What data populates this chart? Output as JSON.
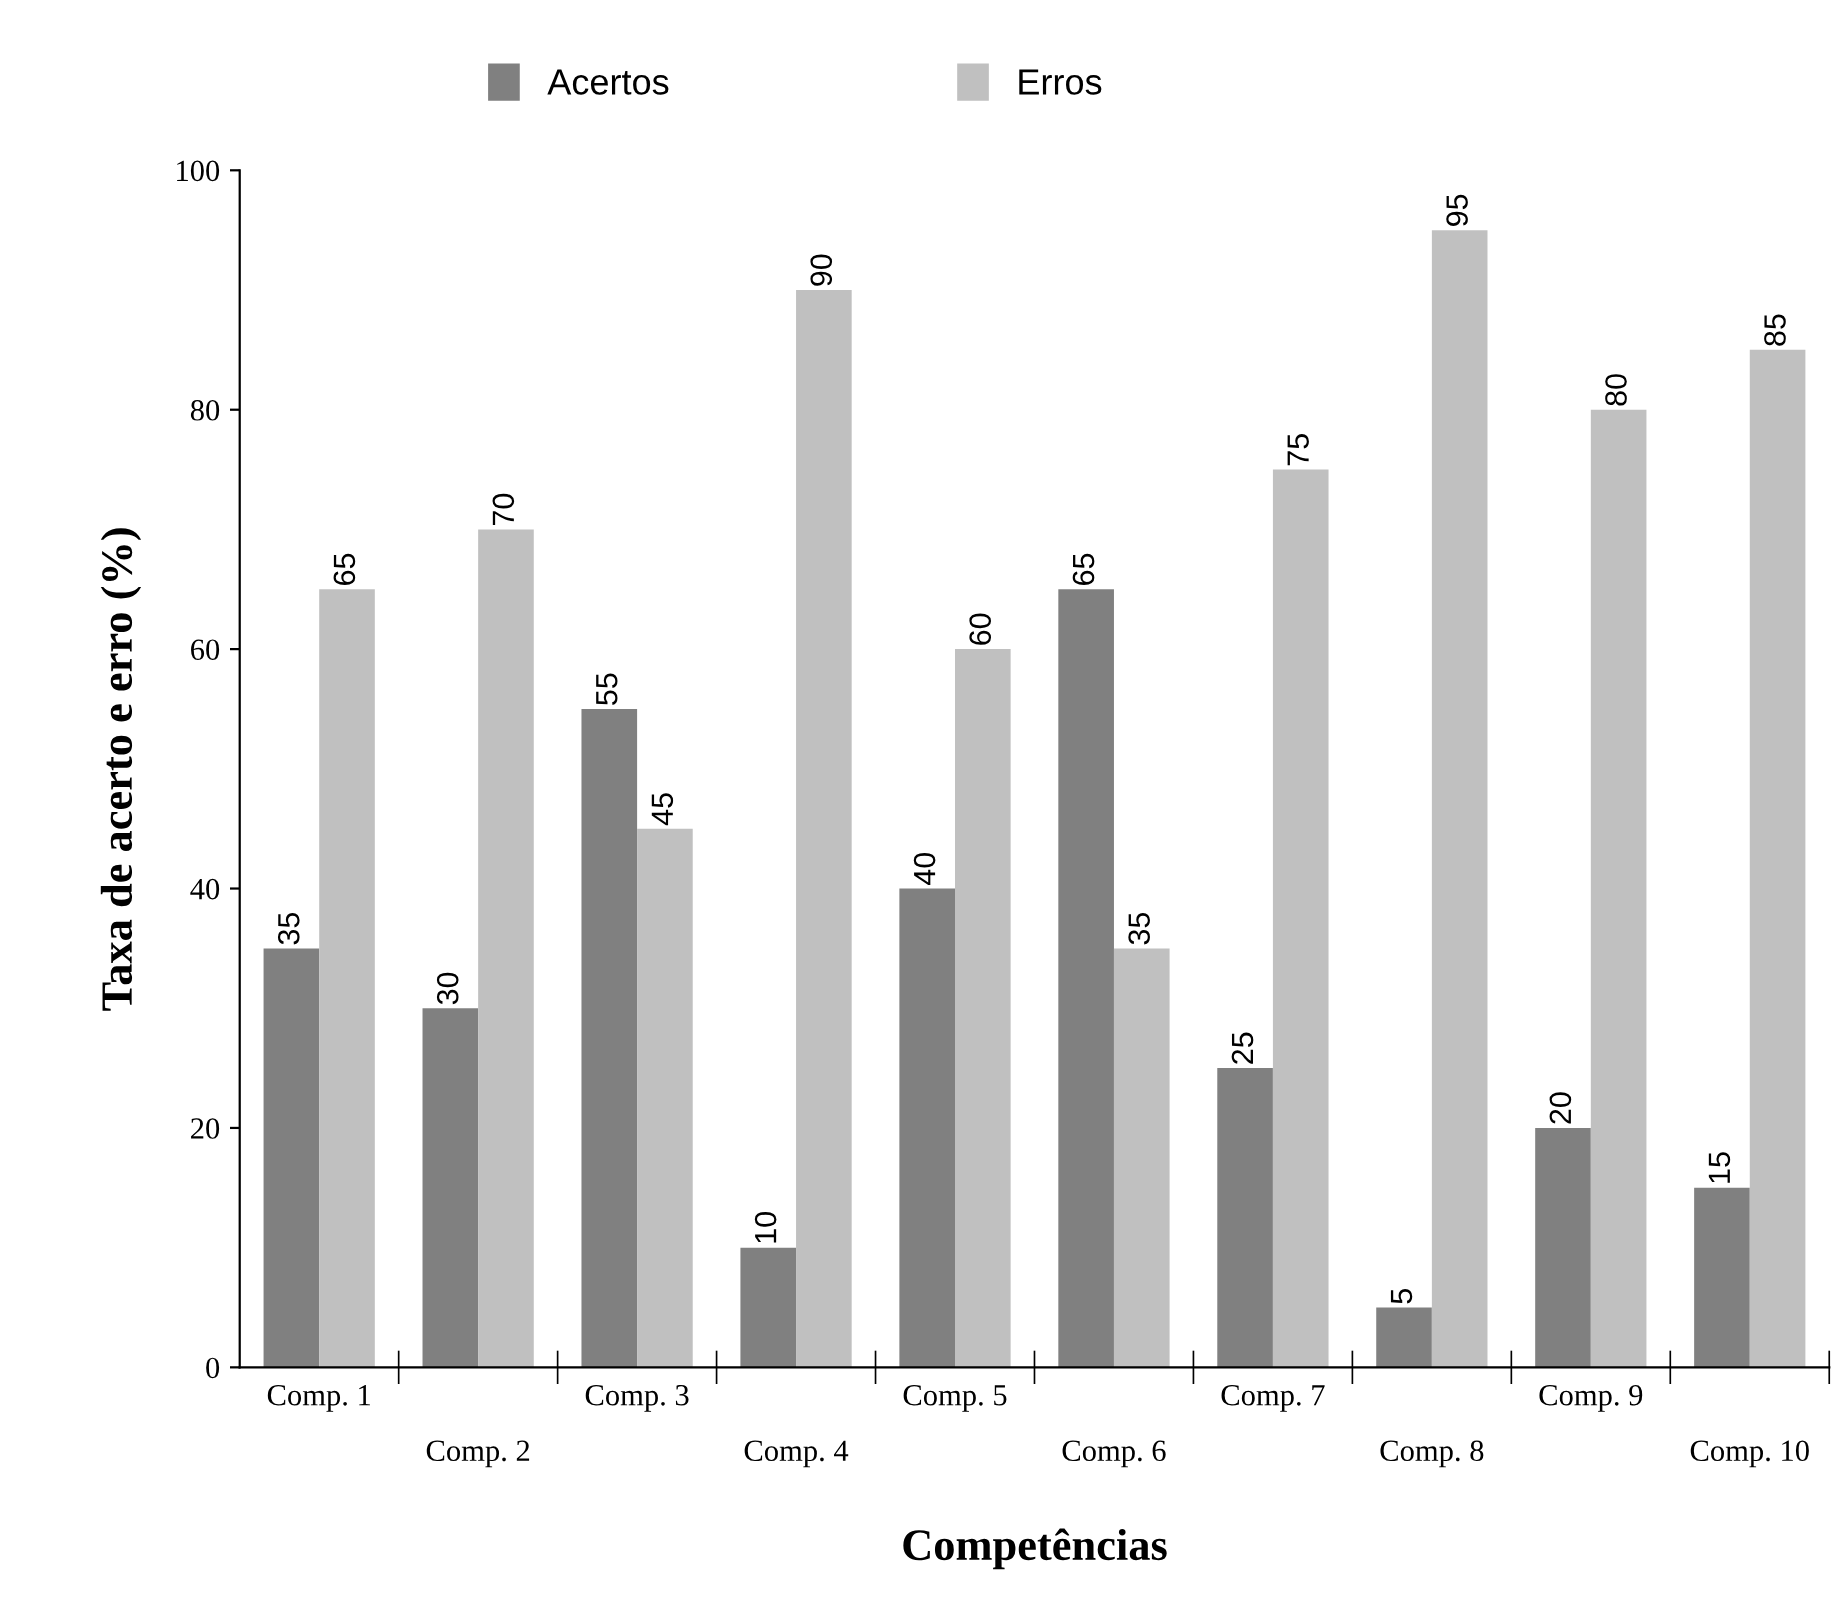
{
  "chart_data": {
    "type": "bar",
    "xlabel": "Competências",
    "ylabel": "Taxa de acerto e erro (%)",
    "categories": [
      "Comp. 1",
      "Comp. 2",
      "Comp. 3",
      "Comp. 4",
      "Comp. 5",
      "Comp. 6",
      "Comp. 7",
      "Comp. 8",
      "Comp. 9",
      "Comp. 10"
    ],
    "series": [
      {
        "name": "Acertos",
        "color": "#808080",
        "values": [
          35,
          30,
          55,
          10,
          40,
          65,
          25,
          5,
          20,
          15
        ]
      },
      {
        "name": "Erros",
        "color": "#c0c0c0",
        "values": [
          65,
          70,
          45,
          90,
          60,
          35,
          75,
          95,
          80,
          85
        ]
      }
    ],
    "ylim": [
      0,
      100
    ],
    "yticks": [
      0,
      20,
      40,
      60,
      80,
      100
    ],
    "grid": false,
    "legend": "top",
    "data_labels": true
  }
}
